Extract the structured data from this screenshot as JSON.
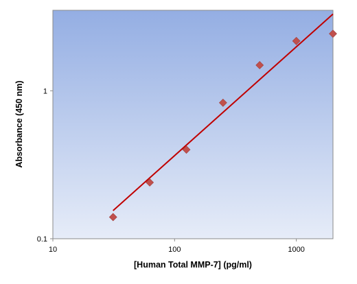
{
  "chart_data": {
    "type": "scatter",
    "xlabel": "[Human Total MMP-7] (pg/ml)",
    "ylabel": "Absorbance (450 nm)",
    "x_scale": "log",
    "y_scale": "log",
    "xlim": [
      10,
      2000
    ],
    "ylim": [
      0.1,
      3.5
    ],
    "x_ticks": [
      10,
      100,
      1000
    ],
    "y_ticks": [
      0.1,
      1
    ],
    "x_tick_labels": [
      "10",
      "100",
      "1000"
    ],
    "y_tick_labels": [
      "0.1",
      "1"
    ],
    "grid": false,
    "series": [
      {
        "kind": "points",
        "marker": "diamond",
        "color": "#c0504d",
        "x": [
          31.25,
          62.5,
          125,
          250,
          500,
          1000,
          2000
        ],
        "y": [
          0.14,
          0.24,
          0.4,
          0.83,
          1.49,
          2.17,
          2.43
        ]
      },
      {
        "kind": "fit-line",
        "color": "#c00000",
        "x": [
          31.25,
          2000
        ],
        "y": [
          0.155,
          3.3
        ]
      }
    ],
    "colors": {
      "plot_bg_top": "#94aee3",
      "plot_bg_bottom": "#e6ecf8"
    }
  }
}
